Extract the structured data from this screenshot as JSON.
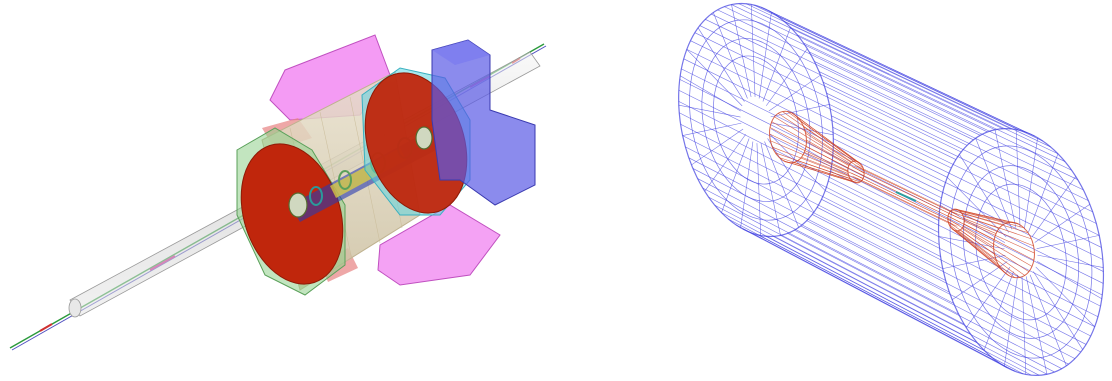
{
  "figure": {
    "panels": [
      {
        "name": "solid-detector-render",
        "style": "translucent solid volumes"
      },
      {
        "name": "wireframe-detector-render",
        "style": "wireframe"
      }
    ]
  },
  "colors": {
    "background": "#ffffff",
    "barrel_shell": "#d8ccb4",
    "endcap_disk": "#c0260c",
    "endcap_rim_left": "#8fd08a",
    "endcap_rim_right": "#5fd6e0",
    "magenta_block": "#f07af0",
    "blue_block": "#5a5ae6",
    "pink_block": "#e88a8a",
    "beam_pipe": "#c8c8c8",
    "wire_blue": "#3a3ae0",
    "wire_red": "#d04020"
  }
}
